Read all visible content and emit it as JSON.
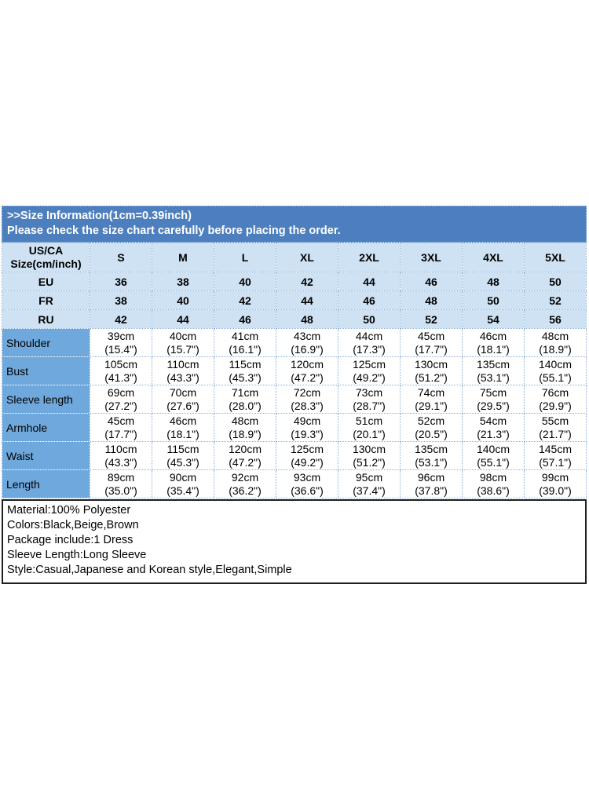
{
  "header": {
    "title": ">>Size Information(1cm=0.39inch)",
    "subtitle": "Please check the size chart carefully before placing the order."
  },
  "chart_data": {
    "type": "table",
    "title": ">>Size Information(1cm=0.39inch)",
    "subtitle": "Please check the size chart carefully before placing the order.",
    "unit_note": "1cm=0.39inch",
    "columns": [
      "US/CA\nSize(cm/inch)",
      "S",
      "M",
      "L",
      "XL",
      "2XL",
      "3XL",
      "4XL",
      "5XL"
    ],
    "rows": [
      [
        "EU",
        "36",
        "38",
        "40",
        "42",
        "44",
        "46",
        "48",
        "50"
      ],
      [
        "FR",
        "38",
        "40",
        "42",
        "44",
        "46",
        "48",
        "50",
        "52"
      ],
      [
        "RU",
        "42",
        "44",
        "46",
        "48",
        "50",
        "52",
        "54",
        "56"
      ],
      [
        "Shoulder",
        "39cm\n(15.4\")",
        "40cm\n(15.7\")",
        "41cm\n(16.1\")",
        "43cm\n(16.9\")",
        "44cm\n(17.3\")",
        "45cm\n(17.7\")",
        "46cm\n(18.1\")",
        "48cm\n(18.9\")"
      ],
      [
        "Bust",
        "105cm\n(41.3\")",
        "110cm\n(43.3\")",
        "115cm\n(45.3\")",
        "120cm\n(47.2\")",
        "125cm\n(49.2\")",
        "130cm\n(51.2\")",
        "135cm\n(53.1\")",
        "140cm\n(55.1\")"
      ],
      [
        "Sleeve length",
        "69cm\n(27.2\")",
        "70cm\n(27.6\")",
        "71cm\n(28.0\")",
        "72cm\n(28.3\")",
        "73cm\n(28.7\")",
        "74cm\n(29.1\")",
        "75cm\n(29.5\")",
        "76cm\n(29.9\")"
      ],
      [
        "Armhole",
        "45cm\n(17.7\")",
        "46cm\n(18.1\")",
        "48cm\n(18.9\")",
        "49cm\n(19.3\")",
        "51cm\n(20.1\")",
        "52cm\n(20.5\")",
        "54cm\n(21.3\")",
        "55cm\n(21.7\")"
      ],
      [
        "Waist",
        "110cm\n(43.3\")",
        "115cm\n(45.3\")",
        "120cm\n(47.2\")",
        "125cm\n(49.2\")",
        "130cm\n(51.2\")",
        "135cm\n(53.1\")",
        "140cm\n(55.1\")",
        "145cm\n(57.1\")"
      ],
      [
        "Length",
        "89cm\n(35.0\")",
        "90cm\n(35.4\")",
        "92cm\n(36.2\")",
        "93cm\n(36.6\")",
        "95cm\n(37.4\")",
        "96cm\n(37.8\")",
        "98cm\n(38.6\")",
        "99cm\n(39.0\")"
      ]
    ],
    "region_row_count": 3
  },
  "product_info": {
    "lines": [
      "Material:100% Polyester",
      "Colors:Black,Beige,Brown",
      "Package include:1 Dress",
      "Sleeve Length:Long Sleeve",
      "Style:Casual,Japanese and Korean style,Elegant,Simple"
    ]
  },
  "colors": {
    "header_band_bg": "#4d7fbe",
    "header_band_text": "#ffffff",
    "light_blue_cell_bg": "#cfe2f3",
    "measurement_label_bg": "#6fa8dc",
    "data_cell_bg": "#ffffff",
    "table_border": "#8ab0d8",
    "info_box_border": "#1f1f1f",
    "text": "#000000"
  }
}
